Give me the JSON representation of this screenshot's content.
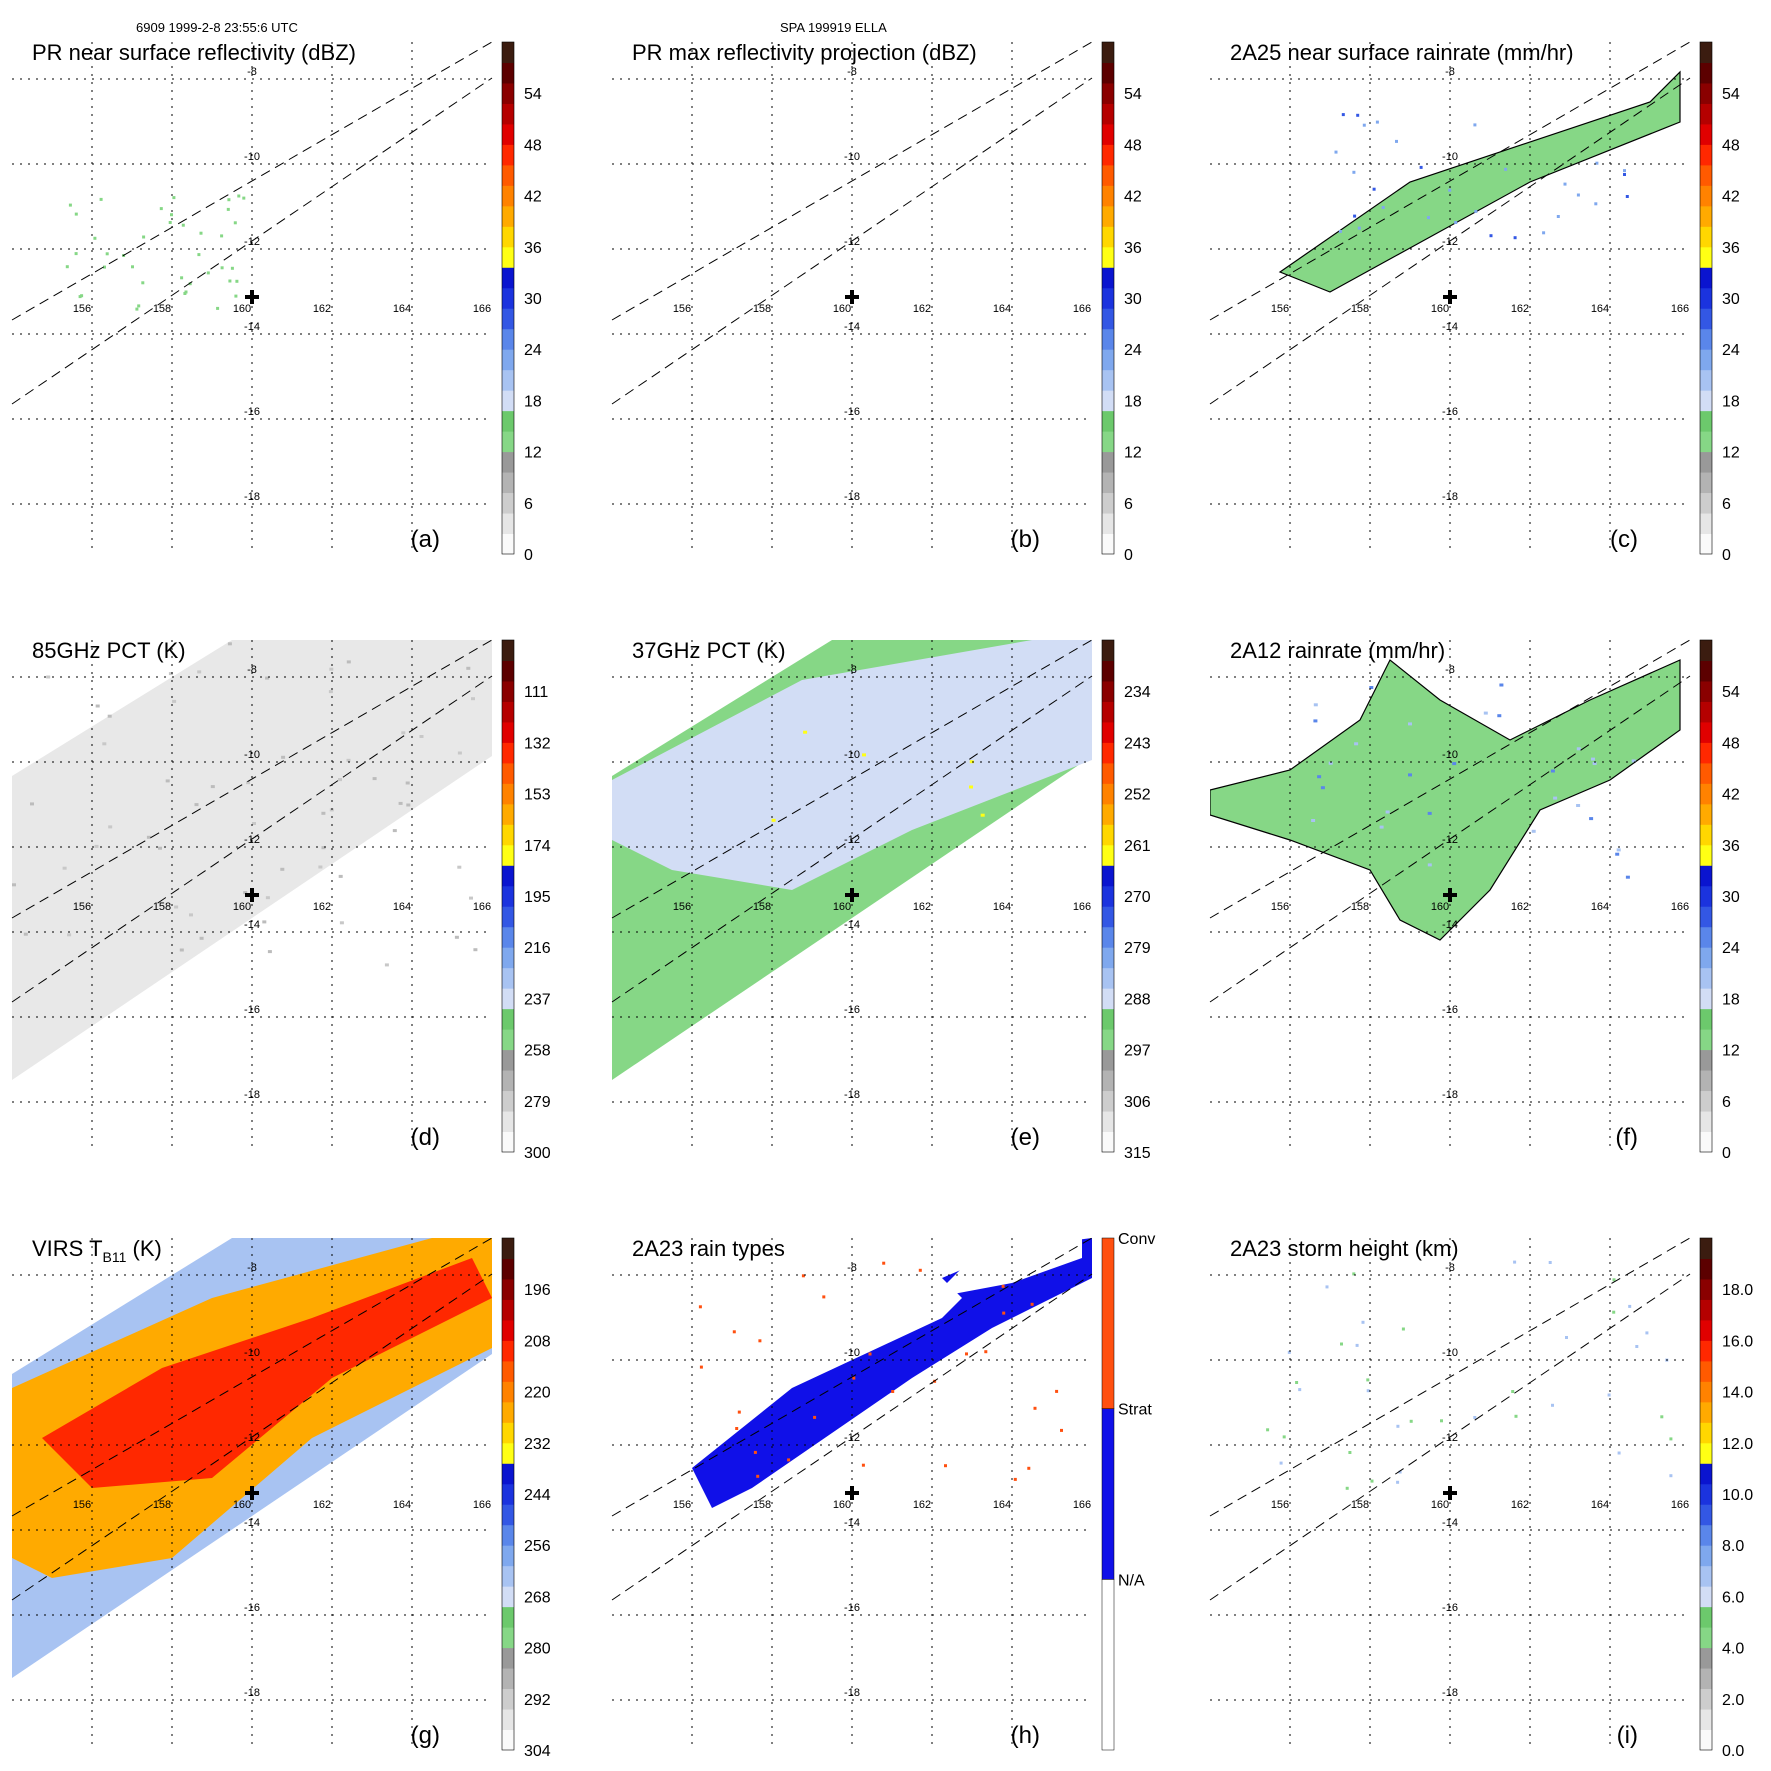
{
  "header": {
    "left": "6909 1999-2-8 23:55:6 UTC",
    "center": "SPA 199919 ELLA"
  },
  "colors": {
    "scale": [
      "#fafafa",
      "#e6e6e6",
      "#cdcdcd",
      "#b3b3b3",
      "#999999",
      "#86d786",
      "#6cc96c",
      "#d2ddf5",
      "#a8c3f2",
      "#7fa8ee",
      "#5a86ea",
      "#3357e4",
      "#1b33de",
      "#0a14cf",
      "#ffff14",
      "#ffd700",
      "#ffaa00",
      "#ff8200",
      "#ff5a00",
      "#ff2800",
      "#e00000",
      "#b50000",
      "#8a0000",
      "#5c0000",
      "#3b1c10"
    ],
    "conv": "#ff5010",
    "strat": "#1010e8",
    "na": "#ffffff"
  },
  "chart_data": [
    {
      "id": "a",
      "type": "heatmap",
      "title": "PR near surface reflectivity (dBZ)",
      "panel_label": "(a)",
      "field": "pr",
      "crosshair": true,
      "cbar_labels": [
        "0",
        "6",
        "12",
        "18",
        "24",
        "30",
        "36",
        "42",
        "48",
        "54"
      ],
      "lon_ticks": [
        "156",
        "158",
        "160",
        "162",
        "164",
        "166"
      ],
      "lat_ticks": [
        "-8",
        "-10",
        "-12",
        "-14",
        "-16",
        "-18"
      ]
    },
    {
      "id": "b",
      "type": "heatmap",
      "title": "PR max reflectivity projection (dBZ)",
      "panel_label": "(b)",
      "field": "prmax",
      "crosshair": true,
      "cbar_labels": [
        "0",
        "6",
        "12",
        "18",
        "24",
        "30",
        "36",
        "42",
        "48",
        "54"
      ],
      "lon_ticks": [
        "156",
        "158",
        "160",
        "162",
        "164",
        "166"
      ],
      "lat_ticks": [
        "-8",
        "-10",
        "-12",
        "-14",
        "-16",
        "-18"
      ]
    },
    {
      "id": "c",
      "type": "heatmap",
      "title": "2A25 near surface rainrate (mm/hr)",
      "panel_label": "(c)",
      "field": "rain25",
      "crosshair": true,
      "cbar_labels": [
        "0",
        "6",
        "12",
        "18",
        "24",
        "30",
        "36",
        "42",
        "48",
        "54"
      ],
      "lon_ticks": [
        "156",
        "158",
        "160",
        "162",
        "164",
        "166"
      ],
      "lat_ticks": [
        "-8",
        "-10",
        "-12",
        "-14",
        "-16",
        "-18"
      ]
    },
    {
      "id": "d",
      "type": "heatmap",
      "title": "85GHz PCT (K)",
      "panel_label": "(d)",
      "field": "pct85",
      "crosshair": true,
      "cbar_labels": [
        "300",
        "279",
        "258",
        "237",
        "216",
        "195",
        "174",
        "153",
        "132",
        "111"
      ],
      "lon_ticks": [
        "156",
        "158",
        "160",
        "162",
        "164",
        "166"
      ],
      "lat_ticks": [
        "-8",
        "-10",
        "-12",
        "-14",
        "-16",
        "-18"
      ]
    },
    {
      "id": "e",
      "type": "heatmap",
      "title": "37GHz PCT (K)",
      "panel_label": "(e)",
      "field": "pct37",
      "crosshair": true,
      "cbar_labels": [
        "315",
        "306",
        "297",
        "288",
        "279",
        "270",
        "261",
        "252",
        "243",
        "234"
      ],
      "lon_ticks": [
        "156",
        "158",
        "160",
        "162",
        "164",
        "166"
      ],
      "lat_ticks": [
        "-8",
        "-10",
        "-12",
        "-14",
        "-16",
        "-18"
      ]
    },
    {
      "id": "f",
      "type": "heatmap",
      "title": "2A12 rainrate (mm/hr)",
      "panel_label": "(f)",
      "field": "rain12",
      "crosshair": true,
      "cbar_labels": [
        "0",
        "6",
        "12",
        "18",
        "24",
        "30",
        "36",
        "42",
        "48",
        "54"
      ],
      "lon_ticks": [
        "156",
        "158",
        "160",
        "162",
        "164",
        "166"
      ],
      "lat_ticks": [
        "-8",
        "-10",
        "-12",
        "-14",
        "-16",
        "-18"
      ]
    },
    {
      "id": "g",
      "type": "heatmap",
      "title": "VIRS T",
      "title_sub": "B11",
      "title_tail": " (K)",
      "panel_label": "(g)",
      "field": "virs",
      "crosshair": true,
      "cbar_labels": [
        "304",
        "292",
        "280",
        "268",
        "256",
        "244",
        "232",
        "220",
        "208",
        "196"
      ],
      "lon_ticks": [
        "156",
        "158",
        "160",
        "162",
        "164",
        "166"
      ],
      "lat_ticks": [
        "-8",
        "-10",
        "-12",
        "-14",
        "-16",
        "-18"
      ]
    },
    {
      "id": "h",
      "type": "heatmap",
      "title": "2A23 rain types",
      "panel_label": "(h)",
      "field": "types",
      "crosshair": true,
      "cbar_categories": [
        "N/A",
        "Strat",
        "Conv"
      ],
      "lon_ticks": [
        "156",
        "158",
        "160",
        "162",
        "164",
        "166"
      ],
      "lat_ticks": [
        "-8",
        "-10",
        "-12",
        "-14",
        "-16",
        "-18"
      ]
    },
    {
      "id": "i",
      "type": "heatmap",
      "title": "2A23 storm height (km)",
      "panel_label": "(i)",
      "field": "height",
      "crosshair": true,
      "cbar_labels": [
        "0.0",
        "2.0",
        "4.0",
        "6.0",
        "8.0",
        "10.0",
        "12.0",
        "14.0",
        "16.0",
        "18.0"
      ],
      "lon_ticks": [
        "156",
        "158",
        "160",
        "162",
        "164",
        "166"
      ],
      "lat_ticks": [
        "-8",
        "-10",
        "-12",
        "-14",
        "-16",
        "-18"
      ]
    }
  ]
}
